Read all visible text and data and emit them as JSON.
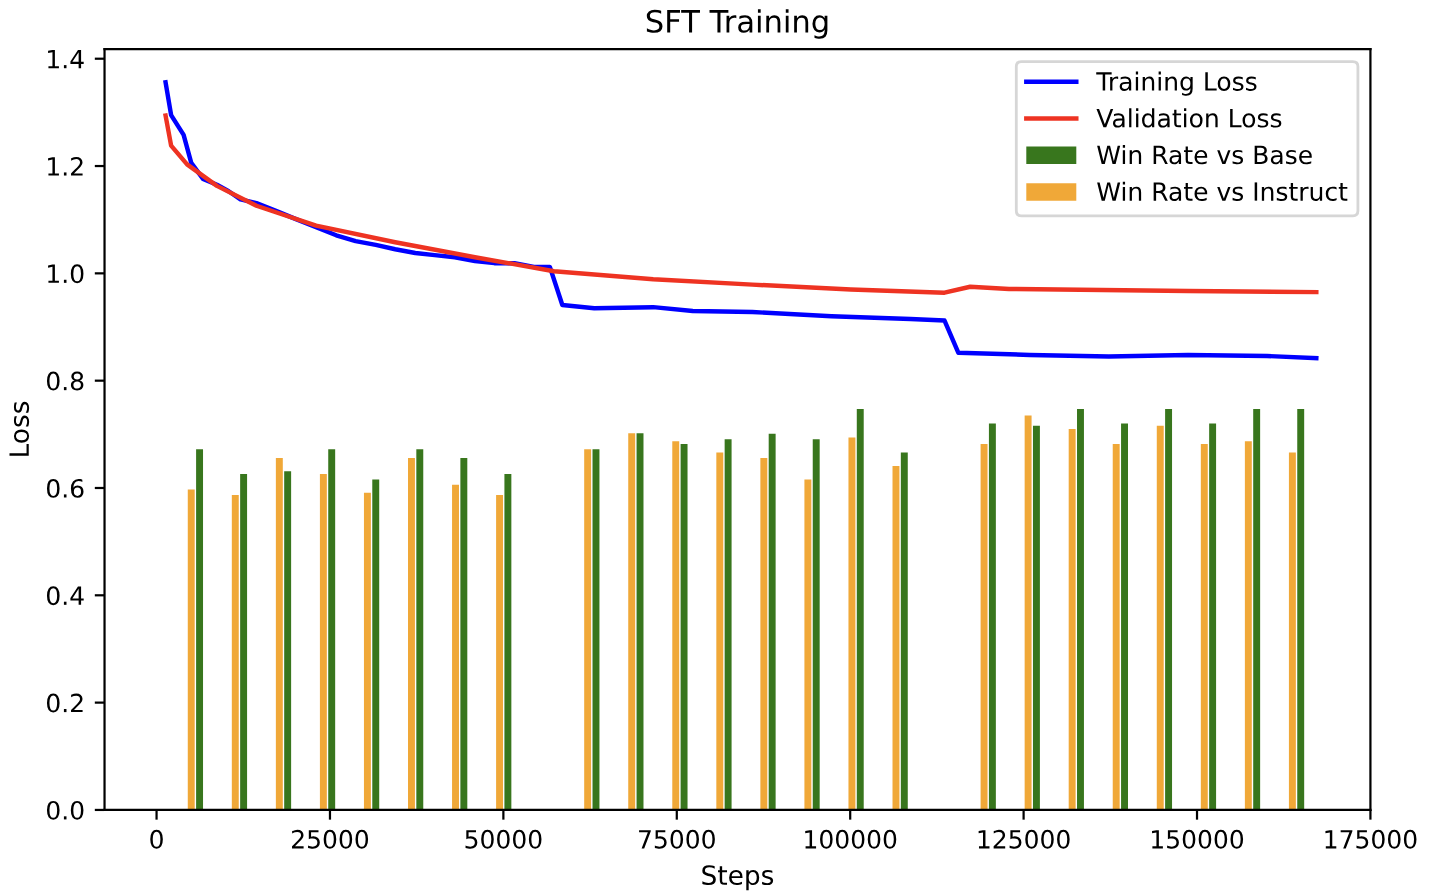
{
  "chart_data": {
    "type": "line",
    "title": "SFT Training",
    "xlabel": "Steps",
    "ylabel": "Loss",
    "xlim": [
      -7500,
      175000
    ],
    "ylim": [
      0,
      1.418
    ],
    "xticks": [
      0,
      25000,
      50000,
      75000,
      100000,
      125000,
      150000,
      175000
    ],
    "yticks": [
      {
        "value": 0,
        "label": "0.0"
      },
      0.2,
      0.4,
      0.6,
      0.8,
      {
        "value": 1,
        "label": "1.0"
      },
      1.2,
      1.4
    ],
    "grid": false,
    "legend": "top right",
    "series": [
      {
        "name": "Training Loss",
        "color": "#0000ff",
        "x": [
          1300,
          2100,
          3900,
          5000,
          6700,
          8700,
          10400,
          12100,
          14400,
          17300,
          20100,
          23000,
          25900,
          28700,
          31600,
          34400,
          37300,
          40100,
          43000,
          45900,
          48700,
          51600,
          54400,
          56700,
          58500,
          63100,
          71600,
          77300,
          85900,
          97300,
          108700,
          113600,
          115600,
          125900,
          137300,
          148700,
          160100,
          167200
        ],
        "values": [
          1.356,
          1.295,
          1.258,
          1.206,
          1.176,
          1.165,
          1.153,
          1.138,
          1.131,
          1.116,
          1.101,
          1.086,
          1.071,
          1.06,
          1.053,
          1.045,
          1.038,
          1.034,
          1.03,
          1.023,
          1.019,
          1.019,
          1.012,
          1.012,
          0.941,
          0.935,
          0.937,
          0.93,
          0.928,
          0.92,
          0.915,
          0.912,
          0.852,
          0.848,
          0.845,
          0.848,
          0.846,
          0.842
        ]
      },
      {
        "name": "Validation Loss",
        "color": "#ee3322",
        "x": [
          1300,
          2100,
          4400,
          8700,
          14400,
          23000,
          34400,
          45900,
          57300,
          71600,
          85900,
          100100,
          113600,
          117300,
          122900,
          148700,
          167200
        ],
        "values": [
          1.294,
          1.238,
          1.203,
          1.163,
          1.126,
          1.089,
          1.058,
          1.03,
          1.004,
          0.989,
          0.979,
          0.97,
          0.964,
          0.975,
          0.971,
          0.967,
          0.965
        ]
      },
      {
        "name": "Win Rate vs Base",
        "type": "bar",
        "color": "#38761d",
        "x": [
          6200,
          12550,
          18900,
          25250,
          31600,
          37950,
          44300,
          50650,
          63350,
          69700,
          76050,
          82400,
          88750,
          95100,
          101450,
          107800,
          120500,
          126850,
          133200,
          139550,
          145900,
          152250,
          158600,
          164950
        ],
        "values": [
          0.672,
          0.626,
          0.631,
          0.672,
          0.616,
          0.672,
          0.656,
          0.626,
          0.672,
          0.702,
          0.682,
          0.691,
          0.701,
          0.691,
          0.747,
          0.666,
          0.72,
          0.716,
          0.747,
          0.72,
          0.747,
          0.72,
          0.747,
          0.747
        ]
      },
      {
        "name": "Win Rate vs Instruct",
        "type": "bar",
        "color": "#f0a838",
        "x": [
          5000,
          11350,
          17700,
          24050,
          30400,
          36750,
          43100,
          49450,
          62150,
          68500,
          74850,
          81200,
          87550,
          93900,
          100250,
          106600,
          119300,
          125650,
          132000,
          138350,
          144700,
          151050,
          157400,
          163750
        ],
        "values": [
          0.597,
          0.587,
          0.656,
          0.626,
          0.591,
          0.656,
          0.606,
          0.587,
          0.672,
          0.702,
          0.687,
          0.666,
          0.656,
          0.616,
          0.694,
          0.641,
          0.682,
          0.735,
          0.71,
          0.682,
          0.716,
          0.682,
          0.687,
          0.666
        ]
      }
    ]
  }
}
